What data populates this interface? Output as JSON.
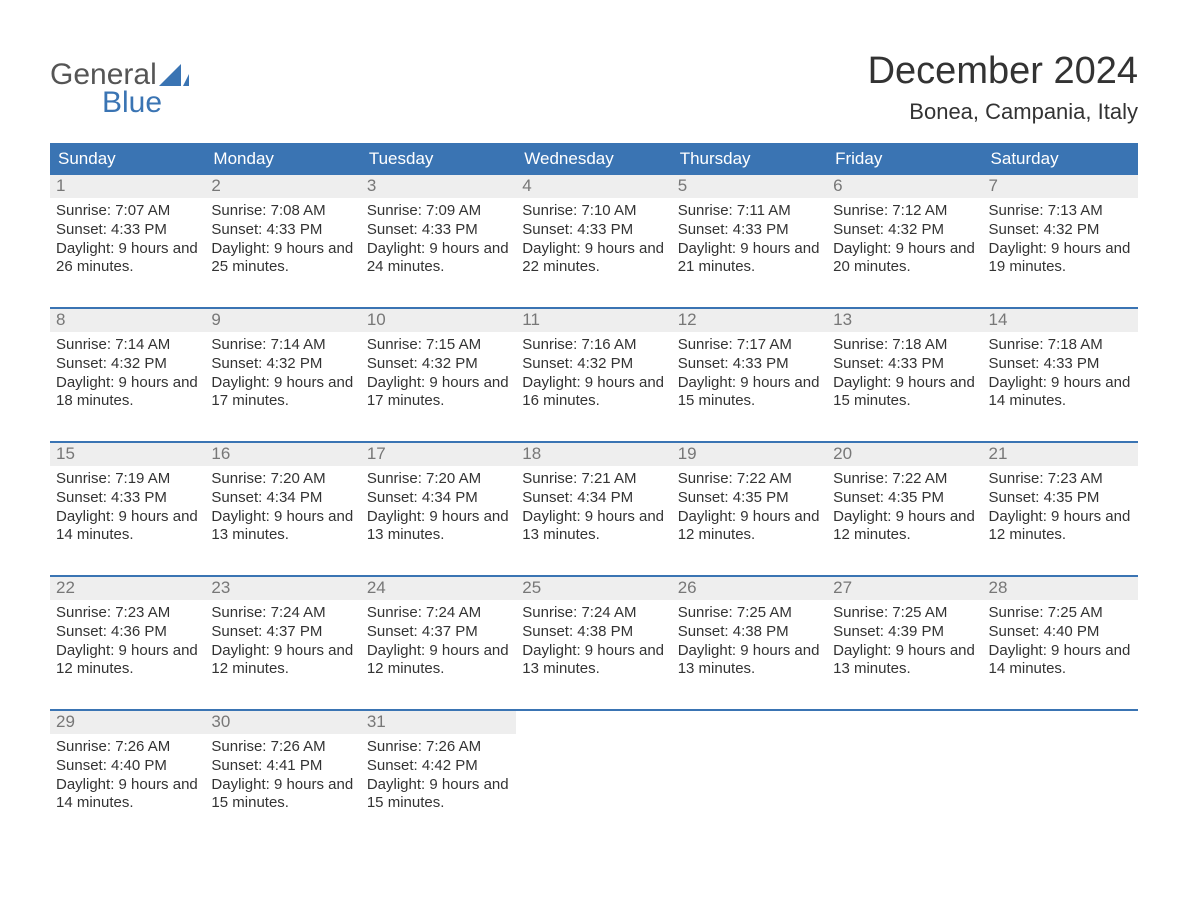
{
  "logo": {
    "text_top": "General",
    "text_bottom": "Blue",
    "accent_color": "#3a74b3",
    "top_color": "#555555"
  },
  "title": "December 2024",
  "location": "Bonea, Campania, Italy",
  "day_headers": [
    "Sunday",
    "Monday",
    "Tuesday",
    "Wednesday",
    "Thursday",
    "Friday",
    "Saturday"
  ],
  "colors": {
    "header_bg": "#3a74b3",
    "header_text": "#ffffff",
    "daynum_bg": "#eeeeee",
    "daynum_text": "#777777",
    "week_border": "#3a74b3",
    "body_text": "#333333",
    "page_bg": "#ffffff"
  },
  "weeks": [
    [
      {
        "n": "1",
        "sunrise": "Sunrise: 7:07 AM",
        "sunset": "Sunset: 4:33 PM",
        "daylight": "Daylight: 9 hours and 26 minutes."
      },
      {
        "n": "2",
        "sunrise": "Sunrise: 7:08 AM",
        "sunset": "Sunset: 4:33 PM",
        "daylight": "Daylight: 9 hours and 25 minutes."
      },
      {
        "n": "3",
        "sunrise": "Sunrise: 7:09 AM",
        "sunset": "Sunset: 4:33 PM",
        "daylight": "Daylight: 9 hours and 24 minutes."
      },
      {
        "n": "4",
        "sunrise": "Sunrise: 7:10 AM",
        "sunset": "Sunset: 4:33 PM",
        "daylight": "Daylight: 9 hours and 22 minutes."
      },
      {
        "n": "5",
        "sunrise": "Sunrise: 7:11 AM",
        "sunset": "Sunset: 4:33 PM",
        "daylight": "Daylight: 9 hours and 21 minutes."
      },
      {
        "n": "6",
        "sunrise": "Sunrise: 7:12 AM",
        "sunset": "Sunset: 4:32 PM",
        "daylight": "Daylight: 9 hours and 20 minutes."
      },
      {
        "n": "7",
        "sunrise": "Sunrise: 7:13 AM",
        "sunset": "Sunset: 4:32 PM",
        "daylight": "Daylight: 9 hours and 19 minutes."
      }
    ],
    [
      {
        "n": "8",
        "sunrise": "Sunrise: 7:14 AM",
        "sunset": "Sunset: 4:32 PM",
        "daylight": "Daylight: 9 hours and 18 minutes."
      },
      {
        "n": "9",
        "sunrise": "Sunrise: 7:14 AM",
        "sunset": "Sunset: 4:32 PM",
        "daylight": "Daylight: 9 hours and 17 minutes."
      },
      {
        "n": "10",
        "sunrise": "Sunrise: 7:15 AM",
        "sunset": "Sunset: 4:32 PM",
        "daylight": "Daylight: 9 hours and 17 minutes."
      },
      {
        "n": "11",
        "sunrise": "Sunrise: 7:16 AM",
        "sunset": "Sunset: 4:32 PM",
        "daylight": "Daylight: 9 hours and 16 minutes."
      },
      {
        "n": "12",
        "sunrise": "Sunrise: 7:17 AM",
        "sunset": "Sunset: 4:33 PM",
        "daylight": "Daylight: 9 hours and 15 minutes."
      },
      {
        "n": "13",
        "sunrise": "Sunrise: 7:18 AM",
        "sunset": "Sunset: 4:33 PM",
        "daylight": "Daylight: 9 hours and 15 minutes."
      },
      {
        "n": "14",
        "sunrise": "Sunrise: 7:18 AM",
        "sunset": "Sunset: 4:33 PM",
        "daylight": "Daylight: 9 hours and 14 minutes."
      }
    ],
    [
      {
        "n": "15",
        "sunrise": "Sunrise: 7:19 AM",
        "sunset": "Sunset: 4:33 PM",
        "daylight": "Daylight: 9 hours and 14 minutes."
      },
      {
        "n": "16",
        "sunrise": "Sunrise: 7:20 AM",
        "sunset": "Sunset: 4:34 PM",
        "daylight": "Daylight: 9 hours and 13 minutes."
      },
      {
        "n": "17",
        "sunrise": "Sunrise: 7:20 AM",
        "sunset": "Sunset: 4:34 PM",
        "daylight": "Daylight: 9 hours and 13 minutes."
      },
      {
        "n": "18",
        "sunrise": "Sunrise: 7:21 AM",
        "sunset": "Sunset: 4:34 PM",
        "daylight": "Daylight: 9 hours and 13 minutes."
      },
      {
        "n": "19",
        "sunrise": "Sunrise: 7:22 AM",
        "sunset": "Sunset: 4:35 PM",
        "daylight": "Daylight: 9 hours and 12 minutes."
      },
      {
        "n": "20",
        "sunrise": "Sunrise: 7:22 AM",
        "sunset": "Sunset: 4:35 PM",
        "daylight": "Daylight: 9 hours and 12 minutes."
      },
      {
        "n": "21",
        "sunrise": "Sunrise: 7:23 AM",
        "sunset": "Sunset: 4:35 PM",
        "daylight": "Daylight: 9 hours and 12 minutes."
      }
    ],
    [
      {
        "n": "22",
        "sunrise": "Sunrise: 7:23 AM",
        "sunset": "Sunset: 4:36 PM",
        "daylight": "Daylight: 9 hours and 12 minutes."
      },
      {
        "n": "23",
        "sunrise": "Sunrise: 7:24 AM",
        "sunset": "Sunset: 4:37 PM",
        "daylight": "Daylight: 9 hours and 12 minutes."
      },
      {
        "n": "24",
        "sunrise": "Sunrise: 7:24 AM",
        "sunset": "Sunset: 4:37 PM",
        "daylight": "Daylight: 9 hours and 12 minutes."
      },
      {
        "n": "25",
        "sunrise": "Sunrise: 7:24 AM",
        "sunset": "Sunset: 4:38 PM",
        "daylight": "Daylight: 9 hours and 13 minutes."
      },
      {
        "n": "26",
        "sunrise": "Sunrise: 7:25 AM",
        "sunset": "Sunset: 4:38 PM",
        "daylight": "Daylight: 9 hours and 13 minutes."
      },
      {
        "n": "27",
        "sunrise": "Sunrise: 7:25 AM",
        "sunset": "Sunset: 4:39 PM",
        "daylight": "Daylight: 9 hours and 13 minutes."
      },
      {
        "n": "28",
        "sunrise": "Sunrise: 7:25 AM",
        "sunset": "Sunset: 4:40 PM",
        "daylight": "Daylight: 9 hours and 14 minutes."
      }
    ],
    [
      {
        "n": "29",
        "sunrise": "Sunrise: 7:26 AM",
        "sunset": "Sunset: 4:40 PM",
        "daylight": "Daylight: 9 hours and 14 minutes."
      },
      {
        "n": "30",
        "sunrise": "Sunrise: 7:26 AM",
        "sunset": "Sunset: 4:41 PM",
        "daylight": "Daylight: 9 hours and 15 minutes."
      },
      {
        "n": "31",
        "sunrise": "Sunrise: 7:26 AM",
        "sunset": "Sunset: 4:42 PM",
        "daylight": "Daylight: 9 hours and 15 minutes."
      },
      null,
      null,
      null,
      null
    ]
  ]
}
